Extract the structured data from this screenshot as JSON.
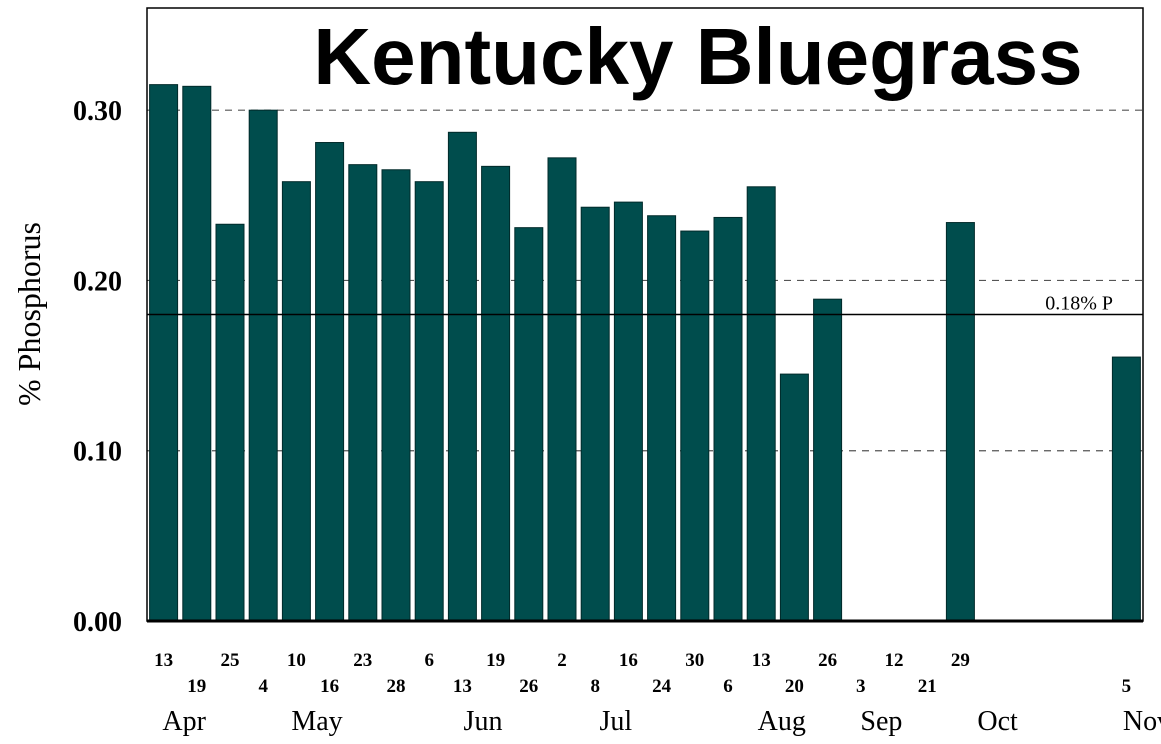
{
  "chart_data": {
    "type": "bar",
    "title": "Kentucky Bluegrass",
    "ylabel": "% Phosphorus",
    "ylim": [
      0,
      0.36
    ],
    "yticks": [
      "0.00",
      "0.10",
      "0.20",
      "0.30"
    ],
    "ytick_values": [
      0,
      0.1,
      0.2,
      0.3
    ],
    "bar_color": "#004d4d",
    "grid": "dashed horizontal lines at 0.10, 0.20, 0.30",
    "reference_line": {
      "value": 0.18,
      "label": "0.18% P"
    },
    "months": [
      "Apr",
      "May",
      "Jun",
      "Jul",
      "Aug",
      "Sep",
      "Oct",
      "Nov"
    ],
    "month_positions": [
      0.5,
      4.5,
      9.5,
      13.5,
      18.5,
      21.5,
      25,
      29.5
    ],
    "categories": [
      "13",
      "19",
      "25",
      "4",
      "10",
      "16",
      "23",
      "28",
      "6",
      "13",
      "19",
      "26",
      "2",
      "8",
      "16",
      "24",
      "30",
      "6",
      "13",
      "20",
      "26",
      "3",
      "12",
      "21",
      "29",
      "",
      "",
      "",
      "",
      "5"
    ],
    "label_rows": [
      0,
      1,
      0,
      1,
      0,
      1,
      0,
      1,
      0,
      1,
      0,
      1,
      0,
      1,
      0,
      1,
      0,
      1,
      0,
      1,
      0,
      1,
      0,
      1,
      0,
      0,
      0,
      0,
      0,
      1
    ],
    "values": [
      0.315,
      0.314,
      0.233,
      0.3,
      0.258,
      0.281,
      0.268,
      0.265,
      0.258,
      0.287,
      0.267,
      0.231,
      0.272,
      0.243,
      0.246,
      0.238,
      0.229,
      0.237,
      0.255,
      0.145,
      0.189,
      null,
      null,
      null,
      0.234,
      null,
      null,
      null,
      null,
      0.155
    ]
  }
}
